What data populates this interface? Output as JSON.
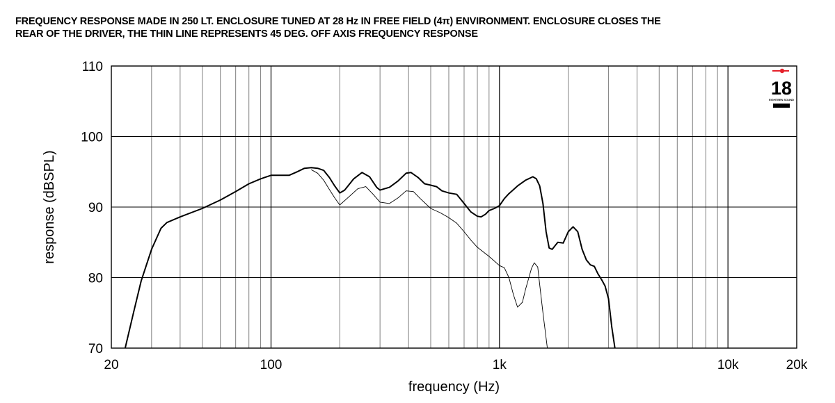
{
  "title_lines": [
    "FREQUENCY RESPONSE MADE IN 250 LT. ENCLOSURE TUNED AT 28 Hz IN FREE FIELD (4π) ENVIRONMENT. ENCLOSURE CLOSES THE",
    "REAR OF THE DRIVER, THE THIN LINE REPRESENTS 45 DEG. OFF AXIS FREQUENCY RESPONSE"
  ],
  "logo": {
    "text": "18",
    "subtext": "EIGHTEEN SOUND",
    "accent": "#e5202a"
  },
  "chart_data": {
    "type": "line",
    "title": "FREQUENCY RESPONSE MADE IN 250 LT. ENCLOSURE TUNED AT 28 Hz IN FREE FIELD (4π) ENVIRONMENT. ENCLOSURE CLOSES THE REAR OF THE DRIVER, THE THIN LINE REPRESENTS 45 DEG. OFF AXIS FREQUENCY RESPONSE",
    "xlabel": "frequency (Hz)",
    "ylabel": "response (dBSPL)",
    "xscale": "log",
    "xlim": [
      20,
      20000
    ],
    "ylim": [
      70,
      110
    ],
    "grid": true,
    "x_ticks": [
      {
        "value": 20,
        "label": "20"
      },
      {
        "value": 100,
        "label": "100"
      },
      {
        "value": 1000,
        "label": "1k"
      },
      {
        "value": 10000,
        "label": "10k"
      },
      {
        "value": 20000,
        "label": "20k"
      }
    ],
    "y_ticks": [
      {
        "value": 70,
        "label": "70"
      },
      {
        "value": 80,
        "label": "80"
      },
      {
        "value": 90,
        "label": "90"
      },
      {
        "value": 100,
        "label": "100"
      },
      {
        "value": 110,
        "label": "110"
      }
    ],
    "series": [
      {
        "line": "thick",
        "points": [
          [
            23,
            70
          ],
          [
            25,
            75
          ],
          [
            27,
            79.5
          ],
          [
            30,
            84
          ],
          [
            33,
            87
          ],
          [
            35,
            87.8
          ],
          [
            40,
            88.6
          ],
          [
            50,
            89.8
          ],
          [
            60,
            91
          ],
          [
            70,
            92.2
          ],
          [
            80,
            93.3
          ],
          [
            90,
            94
          ],
          [
            100,
            94.5
          ],
          [
            110,
            94.5
          ],
          [
            120,
            94.5
          ],
          [
            130,
            95
          ],
          [
            140,
            95.5
          ],
          [
            150,
            95.6
          ],
          [
            160,
            95.5
          ],
          [
            170,
            95.2
          ],
          [
            180,
            94.2
          ],
          [
            190,
            93
          ],
          [
            200,
            92
          ],
          [
            210,
            92.4
          ],
          [
            230,
            94
          ],
          [
            250,
            94.9
          ],
          [
            270,
            94.3
          ],
          [
            290,
            92.8
          ],
          [
            300,
            92.4
          ],
          [
            330,
            92.8
          ],
          [
            360,
            93.7
          ],
          [
            390,
            94.8
          ],
          [
            410,
            94.9
          ],
          [
            440,
            94.2
          ],
          [
            470,
            93.3
          ],
          [
            500,
            93.1
          ],
          [
            530,
            92.9
          ],
          [
            560,
            92.3
          ],
          [
            600,
            92
          ],
          [
            650,
            91.8
          ],
          [
            700,
            90.5
          ],
          [
            750,
            89.3
          ],
          [
            800,
            88.7
          ],
          [
            830,
            88.6
          ],
          [
            870,
            89
          ],
          [
            900,
            89.5
          ],
          [
            950,
            89.8
          ],
          [
            1000,
            90.2
          ],
          [
            1050,
            91.2
          ],
          [
            1100,
            91.9
          ],
          [
            1200,
            93
          ],
          [
            1300,
            93.8
          ],
          [
            1400,
            94.3
          ],
          [
            1450,
            94
          ],
          [
            1500,
            93
          ],
          [
            1550,
            90.5
          ],
          [
            1600,
            86.5
          ],
          [
            1650,
            84.2
          ],
          [
            1700,
            84
          ],
          [
            1800,
            85
          ],
          [
            1900,
            84.9
          ],
          [
            2000,
            86.5
          ],
          [
            2100,
            87.2
          ],
          [
            2200,
            86.5
          ],
          [
            2300,
            84
          ],
          [
            2400,
            82.5
          ],
          [
            2500,
            81.8
          ],
          [
            2600,
            81.6
          ],
          [
            2700,
            80.5
          ],
          [
            2800,
            79.7
          ],
          [
            2900,
            78.8
          ],
          [
            3000,
            77
          ],
          [
            3100,
            73
          ],
          [
            3200,
            70
          ]
        ]
      },
      {
        "line": "thin",
        "points": [
          [
            150,
            95.3
          ],
          [
            160,
            94.8
          ],
          [
            170,
            93.8
          ],
          [
            180,
            92.5
          ],
          [
            190,
            91.3
          ],
          [
            200,
            90.3
          ],
          [
            220,
            91.5
          ],
          [
            240,
            92.6
          ],
          [
            260,
            92.9
          ],
          [
            280,
            91.8
          ],
          [
            300,
            90.7
          ],
          [
            330,
            90.5
          ],
          [
            360,
            91.3
          ],
          [
            390,
            92.3
          ],
          [
            420,
            92.2
          ],
          [
            450,
            91.2
          ],
          [
            500,
            89.8
          ],
          [
            550,
            89.2
          ],
          [
            600,
            88.5
          ],
          [
            650,
            87.7
          ],
          [
            700,
            86.5
          ],
          [
            750,
            85.3
          ],
          [
            800,
            84.3
          ],
          [
            900,
            83
          ],
          [
            1000,
            81.7
          ],
          [
            1050,
            81.4
          ],
          [
            1100,
            80
          ],
          [
            1150,
            77.6
          ],
          [
            1200,
            75.8
          ],
          [
            1260,
            76.5
          ],
          [
            1300,
            78.3
          ],
          [
            1380,
            81.3
          ],
          [
            1420,
            82.1
          ],
          [
            1470,
            81.5
          ],
          [
            1500,
            79
          ],
          [
            1550,
            75
          ],
          [
            1620,
            70
          ]
        ]
      }
    ]
  }
}
